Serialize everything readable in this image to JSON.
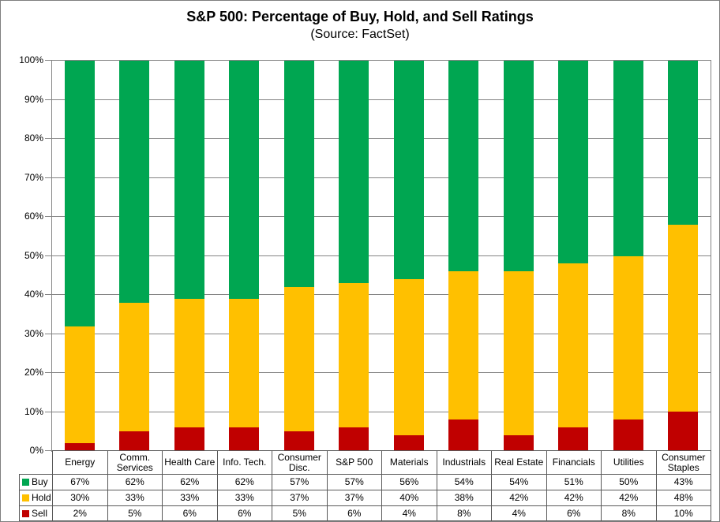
{
  "title": "S&P 500: Percentage of Buy, Hold, and Sell Ratings",
  "subtitle": "(Source: FactSet)",
  "colors": {
    "buy": "#00A651",
    "hold": "#FFC000",
    "sell": "#C00000",
    "gridline": "#848484",
    "table_border": "#595959"
  },
  "chart_data": {
    "type": "bar",
    "stacked": true,
    "title": "S&P 500: Percentage of Buy, Hold, and Sell Ratings",
    "subtitle": "(Source: FactSet)",
    "xlabel": "",
    "ylabel": "",
    "ylim": [
      0,
      100
    ],
    "grid": true,
    "legend_position": "data-table-left",
    "yticks": [
      "0%",
      "10%",
      "20%",
      "30%",
      "40%",
      "50%",
      "60%",
      "70%",
      "80%",
      "90%",
      "100%"
    ],
    "categories": [
      "Energy",
      "Comm. Services",
      "Health Care",
      "Info. Tech.",
      "Consumer Disc.",
      "S&P 500",
      "Materials",
      "Industrials",
      "Real Estate",
      "Financials",
      "Utilities",
      "Consumer Staples"
    ],
    "series": [
      {
        "name": "Buy",
        "color": "#00A651",
        "values": [
          67,
          62,
          62,
          62,
          57,
          57,
          56,
          54,
          54,
          51,
          50,
          43
        ]
      },
      {
        "name": "Hold",
        "color": "#FFC000",
        "values": [
          30,
          33,
          33,
          33,
          37,
          37,
          40,
          38,
          42,
          42,
          42,
          48
        ]
      },
      {
        "name": "Sell",
        "color": "#C00000",
        "values": [
          2,
          5,
          6,
          6,
          5,
          6,
          4,
          8,
          4,
          6,
          8,
          10
        ]
      }
    ]
  }
}
